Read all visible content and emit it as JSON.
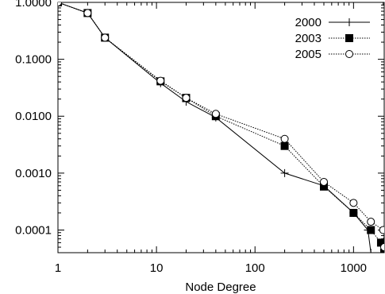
{
  "chart_data": {
    "type": "line",
    "xlabel": "Node Degree",
    "ylabel": "",
    "x_scale": "log",
    "y_scale": "log",
    "xlim": [
      1,
      2048
    ],
    "ylim": [
      4e-05,
      1
    ],
    "x_ticks": [
      {
        "value": 1,
        "label": "1"
      },
      {
        "value": 10,
        "label": "10"
      },
      {
        "value": 100,
        "label": "100"
      },
      {
        "value": 1000,
        "label": "1000"
      }
    ],
    "y_ticks": [
      {
        "value": 1,
        "label": "1.0000"
      },
      {
        "value": 0.1,
        "label": "0.1000"
      },
      {
        "value": 0.01,
        "label": "0.0100"
      },
      {
        "value": 0.001,
        "label": "0.0010"
      },
      {
        "value": 0.0001,
        "label": "0.0001"
      }
    ],
    "grid": false,
    "legend_position": "top-right",
    "series": [
      {
        "name": "2000",
        "marker": "plus",
        "line": "solid",
        "x": [
          1,
          2,
          3,
          11,
          20,
          40,
          200,
          500,
          1000,
          1400,
          1500
        ],
        "y": [
          1,
          0.65,
          0.24,
          0.038,
          0.018,
          0.0095,
          0.001,
          0.0006,
          0.0002,
          0.0001,
          4e-05
        ]
      },
      {
        "name": "2003",
        "marker": "filled-square",
        "line": "dotted",
        "x": [
          1,
          2,
          3,
          11,
          20,
          40,
          200,
          500,
          1000,
          1500,
          1900,
          2048
        ],
        "y": [
          1,
          0.65,
          0.24,
          0.041,
          0.021,
          0.01,
          0.003,
          0.00058,
          0.0002,
          0.0001,
          6e-05,
          4e-05
        ]
      },
      {
        "name": "2005",
        "marker": "open-circle",
        "line": "dotted",
        "x": [
          1,
          2,
          3,
          11,
          20,
          40,
          200,
          500,
          1000,
          1500,
          2000,
          2048
        ],
        "y": [
          1,
          0.65,
          0.24,
          0.042,
          0.021,
          0.011,
          0.004,
          0.0007,
          0.0003,
          0.00014,
          0.0001,
          5e-05
        ]
      }
    ]
  }
}
